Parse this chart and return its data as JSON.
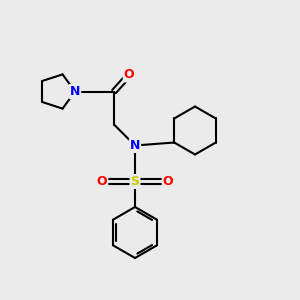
{
  "bg_color": "#ebebeb",
  "atom_colors": {
    "N": "#0000ff",
    "O": "#ff0000",
    "S": "#cccc00",
    "C": "#000000"
  },
  "bond_color": "#000000",
  "bond_width": 1.5,
  "font_size_atom": 9,
  "xlim": [
    0.5,
    10.5
  ],
  "ylim": [
    0.5,
    10.0
  ],
  "pyrrolidine_ring_r": 0.6,
  "cyclohexyl_ring_r": 0.8,
  "phenyl_ring_r": 0.85
}
